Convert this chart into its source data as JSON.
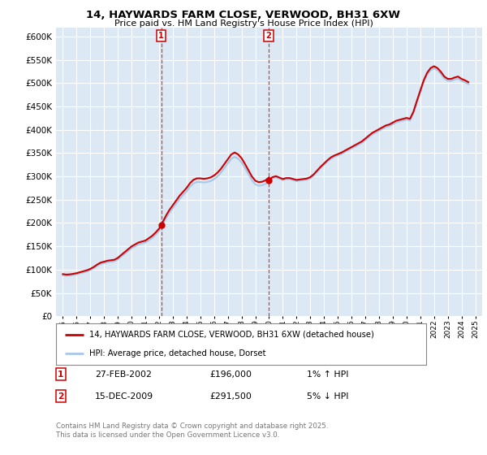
{
  "title": "14, HAYWARDS FARM CLOSE, VERWOOD, BH31 6XW",
  "subtitle": "Price paid vs. HM Land Registry's House Price Index (HPI)",
  "ylim": [
    0,
    620000
  ],
  "yticks": [
    0,
    50000,
    100000,
    150000,
    200000,
    250000,
    300000,
    350000,
    400000,
    450000,
    500000,
    550000,
    600000
  ],
  "background_color": "#ffffff",
  "plot_bg_color": "#dce9f5",
  "grid_color": "#ffffff",
  "line1_color": "#cc0000",
  "line2_color": "#a8c8e8",
  "marker_color": "#cc0000",
  "vline_color": "#cc0000",
  "legend_line1": "14, HAYWARDS FARM CLOSE, VERWOOD, BH31 6XW (detached house)",
  "legend_line2": "HPI: Average price, detached house, Dorset",
  "annotation1": {
    "num": "1",
    "date": "27-FEB-2002",
    "price": "£196,000",
    "pct": "1% ↑ HPI",
    "x": 2002.15
  },
  "annotation2": {
    "num": "2",
    "date": "15-DEC-2009",
    "price": "£291,500",
    "pct": "5% ↓ HPI",
    "x": 2009.96
  },
  "footer": "Contains HM Land Registry data © Crown copyright and database right 2025.\nThis data is licensed under the Open Government Licence v3.0.",
  "hpi_data": {
    "years": [
      1995.0,
      1995.25,
      1995.5,
      1995.75,
      1996.0,
      1996.25,
      1996.5,
      1996.75,
      1997.0,
      1997.25,
      1997.5,
      1997.75,
      1998.0,
      1998.25,
      1998.5,
      1998.75,
      1999.0,
      1999.25,
      1999.5,
      1999.75,
      2000.0,
      2000.25,
      2000.5,
      2000.75,
      2001.0,
      2001.25,
      2001.5,
      2001.75,
      2002.0,
      2002.25,
      2002.5,
      2002.75,
      2003.0,
      2003.25,
      2003.5,
      2003.75,
      2004.0,
      2004.25,
      2004.5,
      2004.75,
      2005.0,
      2005.25,
      2005.5,
      2005.75,
      2006.0,
      2006.25,
      2006.5,
      2006.75,
      2007.0,
      2007.25,
      2007.5,
      2007.75,
      2008.0,
      2008.25,
      2008.5,
      2008.75,
      2009.0,
      2009.25,
      2009.5,
      2009.75,
      2010.0,
      2010.25,
      2010.5,
      2010.75,
      2011.0,
      2011.25,
      2011.5,
      2011.75,
      2012.0,
      2012.25,
      2012.5,
      2012.75,
      2013.0,
      2013.25,
      2013.5,
      2013.75,
      2014.0,
      2014.25,
      2014.5,
      2014.75,
      2015.0,
      2015.25,
      2015.5,
      2015.75,
      2016.0,
      2016.25,
      2016.5,
      2016.75,
      2017.0,
      2017.25,
      2017.5,
      2017.75,
      2018.0,
      2018.25,
      2018.5,
      2018.75,
      2019.0,
      2019.25,
      2019.5,
      2019.75,
      2020.0,
      2020.25,
      2020.5,
      2020.75,
      2021.0,
      2021.25,
      2021.5,
      2021.75,
      2022.0,
      2022.25,
      2022.5,
      2022.75,
      2023.0,
      2023.25,
      2023.5,
      2023.75,
      2024.0,
      2024.25,
      2024.5
    ],
    "values": [
      88000,
      87000,
      87500,
      88500,
      90000,
      92000,
      94000,
      96000,
      99000,
      103000,
      108000,
      112000,
      114000,
      116000,
      117000,
      118000,
      122000,
      128000,
      134000,
      140000,
      146000,
      150000,
      154000,
      156000,
      158000,
      163000,
      168000,
      175000,
      183000,
      196000,
      210000,
      222000,
      232000,
      242000,
      252000,
      260000,
      268000,
      278000,
      285000,
      288000,
      288000,
      287000,
      288000,
      290000,
      294000,
      300000,
      308000,
      318000,
      328000,
      338000,
      342000,
      338000,
      330000,
      318000,
      305000,
      292000,
      283000,
      280000,
      281000,
      284000,
      290000,
      296000,
      298000,
      295000,
      292000,
      294000,
      294000,
      292000,
      290000,
      291000,
      292000,
      293000,
      296000,
      302000,
      310000,
      318000,
      325000,
      332000,
      338000,
      342000,
      345000,
      348000,
      352000,
      356000,
      360000,
      364000,
      368000,
      372000,
      378000,
      384000,
      390000,
      394000,
      398000,
      402000,
      406000,
      408000,
      412000,
      416000,
      418000,
      420000,
      422000,
      420000,
      435000,
      458000,
      480000,
      502000,
      518000,
      528000,
      532000,
      528000,
      520000,
      510000,
      505000,
      505000,
      508000,
      510000,
      505000,
      502000,
      498000
    ]
  },
  "price_data": {
    "years": [
      2002.15,
      2009.96
    ],
    "values": [
      196000,
      291500
    ]
  }
}
